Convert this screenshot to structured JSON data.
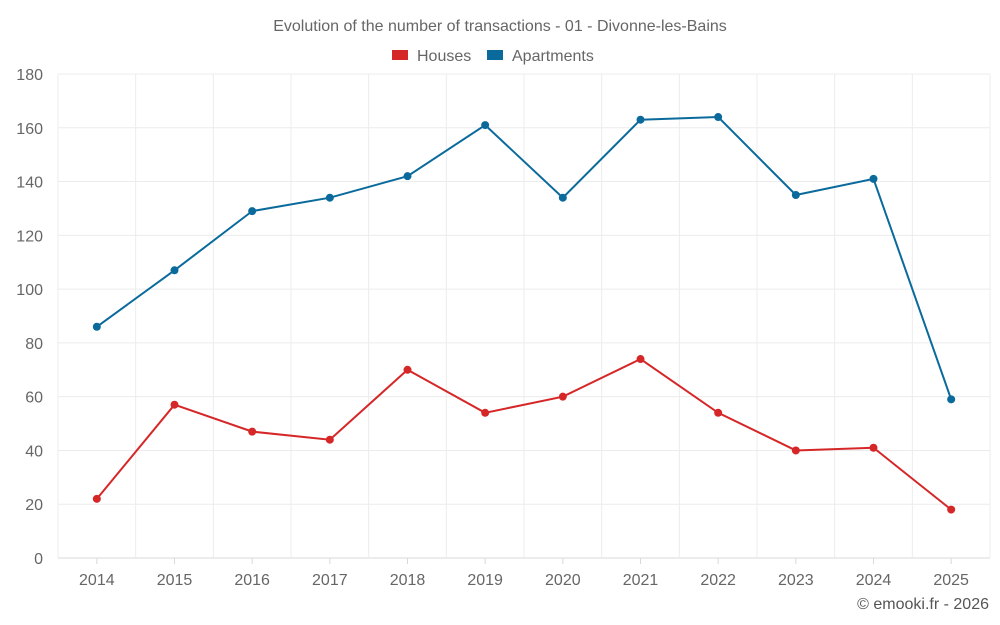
{
  "chart_data": {
    "type": "line",
    "title": "Evolution of the number of transactions - 01 - Divonne-les-Bains",
    "categories": [
      "2014",
      "2015",
      "2016",
      "2017",
      "2018",
      "2019",
      "2020",
      "2021",
      "2022",
      "2023",
      "2024",
      "2025"
    ],
    "series": [
      {
        "name": "Houses",
        "color": "#d62728",
        "values": [
          22,
          57,
          47,
          44,
          70,
          54,
          60,
          74,
          54,
          40,
          41,
          18
        ]
      },
      {
        "name": "Apartments",
        "color": "#0a6a9c",
        "values": [
          86,
          107,
          129,
          134,
          142,
          161,
          134,
          163,
          164,
          135,
          141,
          59
        ]
      }
    ],
    "y_ticks": [
      "0",
      "20",
      "40",
      "60",
      "80",
      "100",
      "120",
      "140",
      "160",
      "180"
    ],
    "ylim": [
      0,
      180
    ],
    "xlabel": "",
    "ylabel": "",
    "legend_position": "top-center",
    "grid": true
  },
  "credit": "© emooki.fr - 2026"
}
